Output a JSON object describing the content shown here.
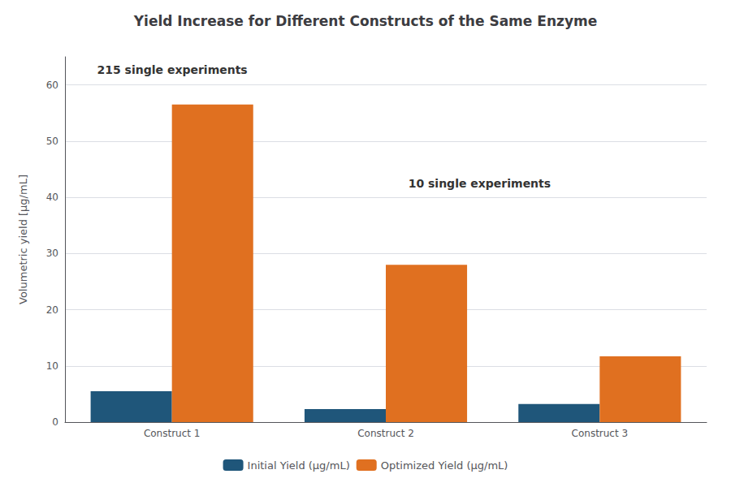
{
  "chart_data": {
    "type": "bar",
    "title": "Yield Increase for Different Constructs of the Same Enzyme",
    "ylabel": "Volumetric yield [μg/mL]",
    "categories": [
      "Construct 1",
      "Construct 2",
      "Construct 3"
    ],
    "series": [
      {
        "name": "Initial Yield (μg/mL)",
        "color": "#1f567a",
        "values": [
          5.5,
          2.3,
          3.2
        ]
      },
      {
        "name": "Optimized Yield (μg/mL)",
        "color": "#e07020",
        "values": [
          56.5,
          28.0,
          11.7
        ]
      }
    ],
    "ylim": [
      0,
      65
    ],
    "yticks": [
      0,
      10,
      20,
      30,
      40,
      50,
      60
    ],
    "grid": true,
    "legend": "bottom",
    "annotations": [
      "215 single experiments",
      "10 single experiments"
    ]
  }
}
